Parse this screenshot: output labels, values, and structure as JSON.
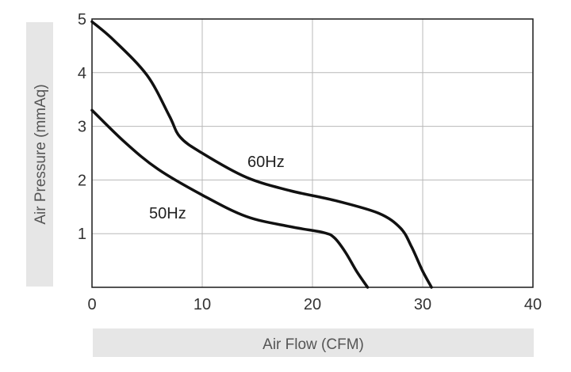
{
  "chart_data": {
    "type": "line",
    "xlabel": "Air Flow (CFM)",
    "ylabel": "Air Pressure (mmAq)",
    "xlim": [
      0,
      40
    ],
    "ylim": [
      0,
      5
    ],
    "x_ticks": [
      "0",
      "10",
      "20",
      "30",
      "40"
    ],
    "y_ticks": [
      "1",
      "2",
      "3",
      "4",
      "5"
    ],
    "grid": true,
    "series": [
      {
        "name": "60Hz",
        "x": [
          0,
          2,
          5,
          7,
          8,
          10,
          14,
          18,
          22,
          26,
          28,
          29,
          30,
          30.8
        ],
        "y": [
          4.95,
          4.6,
          3.95,
          3.2,
          2.8,
          2.5,
          2.05,
          1.8,
          1.62,
          1.38,
          1.1,
          0.75,
          0.3,
          0
        ]
      },
      {
        "name": "50Hz",
        "x": [
          0,
          3,
          6,
          10,
          14,
          18,
          21,
          22,
          23,
          24,
          25
        ],
        "y": [
          3.3,
          2.7,
          2.2,
          1.72,
          1.32,
          1.13,
          1.02,
          0.92,
          0.65,
          0.3,
          0
        ]
      }
    ]
  }
}
